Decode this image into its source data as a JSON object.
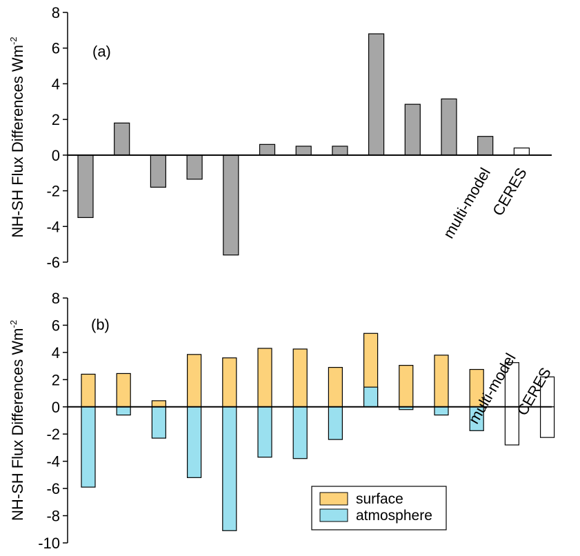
{
  "chart_data": [
    {
      "panel_label": "(a)",
      "type": "bar",
      "ylabel": "NH-SH Flux Differences Wm",
      "ylabel_superscript": "-2",
      "ylim": [
        -6,
        8
      ],
      "yticks": [
        -6,
        -4,
        -2,
        0,
        2,
        4,
        6,
        8
      ],
      "x": [
        1,
        2,
        3,
        4,
        5,
        6,
        7,
        8,
        9,
        10,
        11,
        12,
        13
      ],
      "values": [
        -3.5,
        1.8,
        -1.8,
        -1.35,
        -5.6,
        0.6,
        0.5,
        0.5,
        6.8,
        2.85,
        3.15,
        1.05,
        0.4
      ],
      "bar_colors": [
        "#a6a6a6",
        "#a6a6a6",
        "#a6a6a6",
        "#a6a6a6",
        "#a6a6a6",
        "#a6a6a6",
        "#a6a6a6",
        "#a6a6a6",
        "#a6a6a6",
        "#a6a6a6",
        "#a6a6a6",
        "#a6a6a6",
        "#ffffff"
      ],
      "annotations": [
        {
          "text": "multi-model",
          "x": 12
        },
        {
          "text": "CERES",
          "x": 13
        }
      ],
      "grid": false
    },
    {
      "panel_label": "(b)",
      "type": "bar",
      "ylabel": "NH-SH Flux Differences Wm",
      "ylabel_superscript": "-2",
      "ylim": [
        -10,
        8
      ],
      "yticks": [
        -10,
        -8,
        -6,
        -4,
        -2,
        0,
        2,
        4,
        6,
        8
      ],
      "x": [
        1,
        2,
        3,
        4,
        5,
        6,
        7,
        8,
        9,
        10,
        11,
        12,
        13,
        14
      ],
      "series": [
        {
          "name": "surface",
          "color": "#fdd27a",
          "values": [
            2.4,
            2.45,
            0.45,
            3.85,
            3.6,
            4.3,
            4.25,
            2.9,
            5.4,
            3.05,
            3.8,
            2.75,
            3.25,
            2.2
          ]
        },
        {
          "name": "atmosphere",
          "color": "#9ae0ef",
          "values": [
            -5.9,
            -0.6,
            -2.3,
            -5.2,
            -9.1,
            -3.7,
            -3.8,
            -2.4,
            1.45,
            -0.2,
            -0.6,
            -1.75,
            -2.8,
            -2.25
          ]
        }
      ],
      "hollow_x": [
        13,
        14
      ],
      "annotations": [
        {
          "text": "multi-model",
          "x": 13
        },
        {
          "text": "CERES",
          "x": 14
        }
      ],
      "legend": {
        "placement": "bottom-right",
        "entries": [
          "surface",
          "atmosphere"
        ]
      },
      "grid": false
    }
  ]
}
